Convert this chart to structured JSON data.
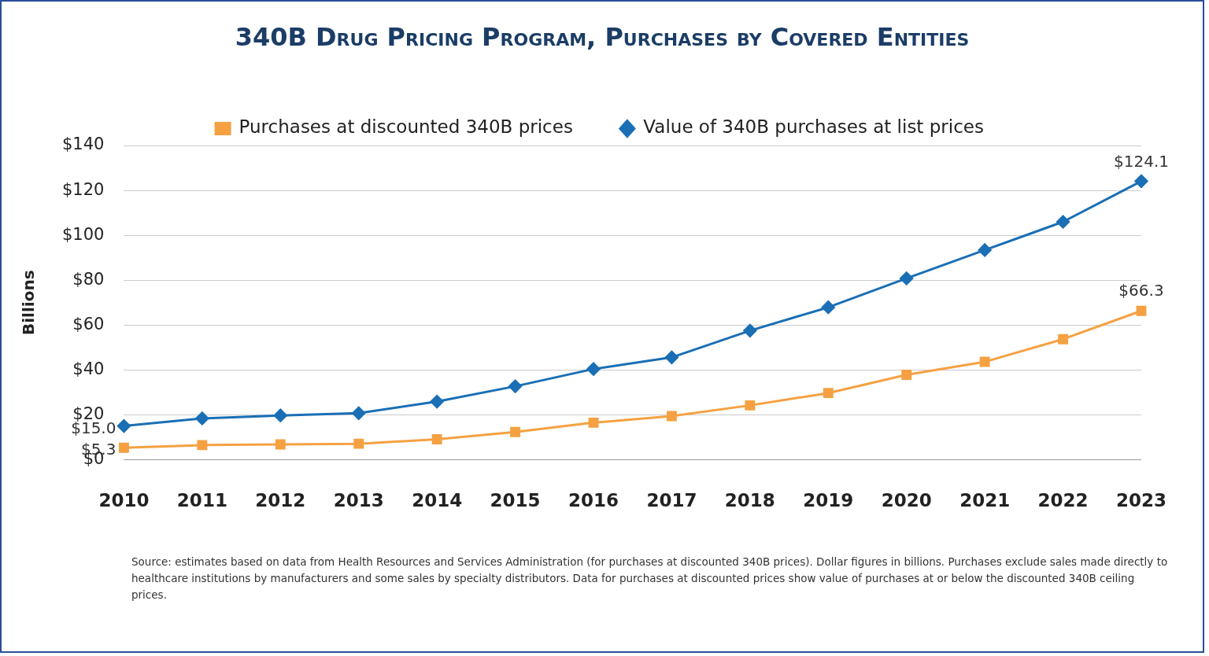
{
  "chart_data": {
    "type": "line",
    "title": "340B Drug Pricing Program, Purchases by Covered Entities",
    "ylabel": "Billions",
    "categories": [
      "2010",
      "2011",
      "2012",
      "2013",
      "2014",
      "2015",
      "2016",
      "2017",
      "2018",
      "2019",
      "2020",
      "2021",
      "2022",
      "2023"
    ],
    "series": [
      {
        "name": "Purchases at discounted 340B prices",
        "color": "#f5a142",
        "marker": "square",
        "values": [
          5.3,
          6.5,
          6.8,
          7.1,
          9.1,
          12.3,
          16.5,
          19.4,
          24.2,
          29.7,
          37.8,
          43.6,
          53.7,
          66.3
        ],
        "value_labels": [
          "$5.3",
          null,
          null,
          null,
          null,
          null,
          null,
          null,
          null,
          null,
          null,
          null,
          null,
          "$66.3"
        ]
      },
      {
        "name": "Value of 340B purchases at list prices",
        "color": "#1a6fb5",
        "marker": "diamond",
        "values": [
          15.0,
          18.4,
          19.7,
          20.7,
          25.9,
          32.7,
          40.4,
          45.6,
          57.5,
          67.9,
          80.8,
          93.4,
          106.0,
          124.1
        ],
        "value_labels": [
          "$15.0",
          null,
          null,
          null,
          null,
          null,
          null,
          null,
          null,
          null,
          null,
          null,
          null,
          "$124.1"
        ]
      }
    ],
    "ylim": [
      0,
      140
    ],
    "yticks": [
      {
        "value": 0,
        "label": "$0"
      },
      {
        "value": 20,
        "label": "$20"
      },
      {
        "value": 40,
        "label": "$40"
      },
      {
        "value": 60,
        "label": "$60"
      },
      {
        "value": 80,
        "label": "$80"
      },
      {
        "value": 100,
        "label": "$100"
      },
      {
        "value": 120,
        "label": "$120"
      },
      {
        "value": 140,
        "label": "$140"
      }
    ],
    "grid": "y",
    "legend": "top",
    "line_style": "solid",
    "annotations": [
      "Source: estimates based on data from Health Resources and Services Administration (for purchases at discounted 340B prices). Dollar figures in billions. Purchases exclude sales made directly to healthcare institutions by manufacturers and some sales by specialty distributors. Data for purchases at discounted prices show value of purchases at or below the discounted 340B ceiling prices."
    ]
  }
}
